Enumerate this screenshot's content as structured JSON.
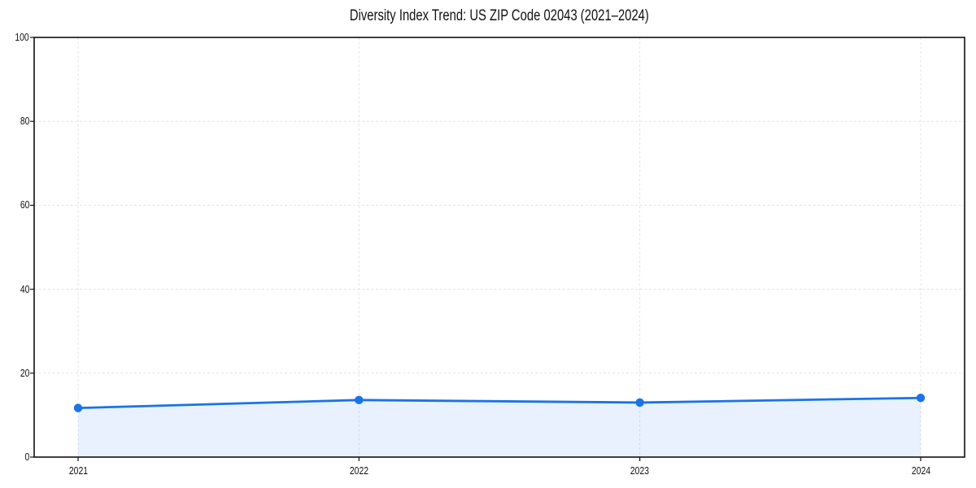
{
  "chart_data": {
    "type": "line",
    "title": "Diversity Index Trend: US ZIP Code 02043 (2021–2024)",
    "x": [
      "2021",
      "2022",
      "2023",
      "2024"
    ],
    "series": [
      {
        "name": "Diversity Index",
        "values": [
          11.7,
          13.6,
          13.0,
          14.1
        ]
      }
    ],
    "xlabel": "",
    "ylabel": "",
    "ylim": [
      0,
      100
    ],
    "yticks": [
      0,
      20,
      40,
      60,
      80,
      100
    ],
    "grid": "dashed-both-axes",
    "legend_position": "none",
    "marker": "circle",
    "area_fill_under_line": true,
    "colors": {
      "line": "#1a73e8",
      "marker": "#1a73e8",
      "area_fill": "rgba(26,115,232,0.10)",
      "grid": "#e4e4e4",
      "spine": "#111111",
      "text": "#111111",
      "background": "#ffffff"
    }
  }
}
